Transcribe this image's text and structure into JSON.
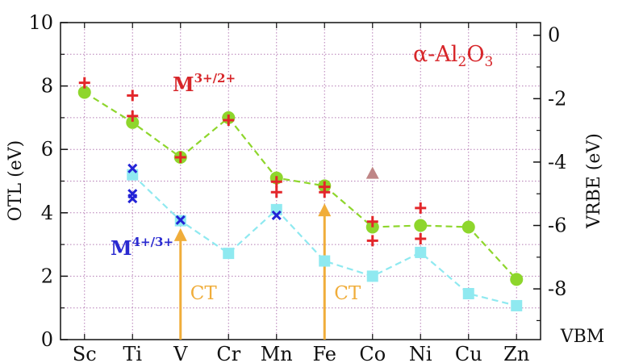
{
  "chart_data": {
    "type": "scatter",
    "categories": [
      "Sc",
      "Ti",
      "V",
      "Cr",
      "Mn",
      "Fe",
      "Co",
      "Ni",
      "Cu",
      "Zn"
    ],
    "xlabel": "",
    "ylabel_left": "OTL (eV)",
    "ylabel_right": "VRBE (eV)",
    "ylim_left": [
      0,
      10
    ],
    "yticks_left": [
      "0",
      "2",
      "4",
      "6",
      "8",
      "10"
    ],
    "ylim_right": [
      -9.6,
      0.4
    ],
    "yticks_right": [
      "0",
      "-2",
      "-4",
      "-6",
      "-8"
    ],
    "right_axis_extra_label": "VBM",
    "grid": true,
    "material_label": {
      "alpha": "α-",
      "parts": [
        "Al",
        "2",
        "O",
        "3"
      ]
    },
    "colors": {
      "green": "#8ed62c",
      "cyan": "#8fe9f0",
      "red_marker": "#e3262a",
      "blue_marker": "#2323d6",
      "orange": "#f0ad3a",
      "red_text": "#d7262a",
      "blue_text": "#2a2ad0",
      "triangle": "#bf8686",
      "grid": "#b57db5"
    },
    "series": [
      {
        "values": [
          7.8,
          6.85,
          5.75,
          7.0,
          5.1,
          4.85,
          3.55,
          3.6,
          3.55,
          1.9
        ]
      },
      {
        "values": [
          null,
          5.2,
          3.75,
          2.72,
          4.1,
          2.48,
          2.0,
          2.75,
          1.45,
          1.07
        ]
      },
      {
        "points": [
          [
            0,
            8.1
          ],
          [
            1,
            7.7
          ],
          [
            1,
            7.05
          ],
          [
            2,
            5.75
          ],
          [
            3,
            6.92
          ],
          [
            4,
            4.98
          ],
          [
            4,
            4.65
          ],
          [
            5,
            4.82
          ],
          [
            5,
            4.65
          ],
          [
            6,
            3.72
          ],
          [
            6,
            3.12
          ],
          [
            7,
            4.15
          ],
          [
            7,
            3.18
          ]
        ]
      },
      {
        "points": [
          [
            1,
            5.4
          ],
          [
            1,
            4.6
          ],
          [
            1,
            4.45
          ],
          [
            2,
            3.77
          ],
          [
            4,
            3.92
          ]
        ]
      },
      {
        "points": [
          [
            6,
            5.25
          ]
        ]
      }
    ],
    "annotations": {
      "m32": {
        "base": "M",
        "sup": "3+/2+"
      },
      "m43": {
        "base": "M",
        "sup": "4+/3+"
      },
      "ct": "CT"
    }
  }
}
